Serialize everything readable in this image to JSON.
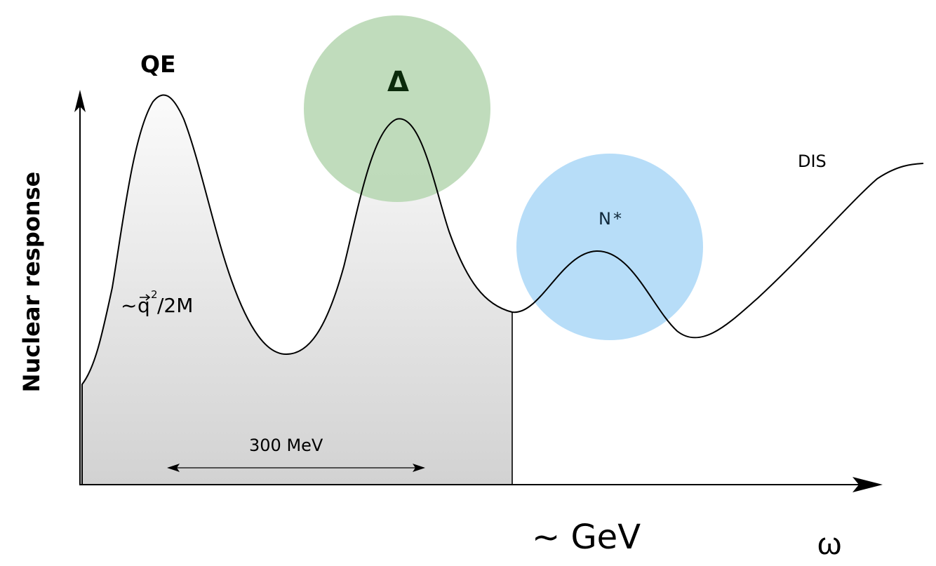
{
  "labels": {
    "qe": "QE",
    "delta": "Δ",
    "nstar": "N*",
    "dis": "DIS",
    "qe_formula_prefix": "~",
    "qe_formula_q": "q",
    "qe_formula_exp": "2",
    "qe_formula_suffix": "/2M",
    "width_300": "300 MeV",
    "gev": "~ GeV",
    "omega": "ω",
    "yaxis": "Nuclear response"
  },
  "colors": {
    "delta_circle": "#b5d6b0",
    "nstar_circle": "#aad7f7",
    "shade_light": "#f7f7f7",
    "shade_dark": "#d3d3d3",
    "curve": "#000000"
  }
}
